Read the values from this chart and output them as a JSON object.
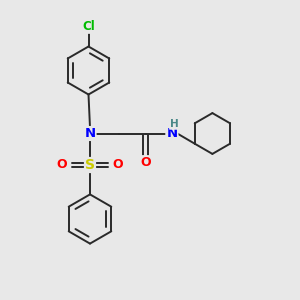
{
  "background_color": "#e8e8e8",
  "bond_color": "#2a2a2a",
  "atom_colors": {
    "N": "#0000ff",
    "O": "#ff0000",
    "S": "#cccc00",
    "Cl": "#00bb00",
    "H": "#4a8888",
    "C": "#2a2a2a"
  },
  "figsize": [
    3.0,
    3.0
  ],
  "dpi": 100,
  "lw": 1.4
}
